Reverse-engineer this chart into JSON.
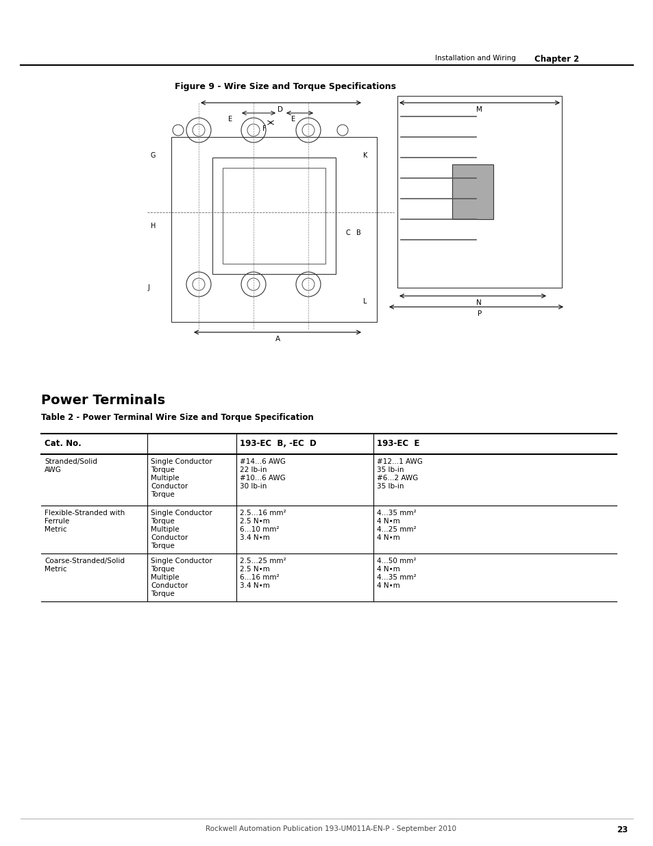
{
  "page_title_right": "Installation and Wiring",
  "chapter_label": "Chapter 2",
  "figure_title": "Figure 9 - Wire Size and Torque Specifications",
  "section_title": "Power Terminals",
  "table_title": "Table 2 - Power Terminal Wire Size and Torque Specification",
  "table_headers": [
    "Cat. No.",
    "193-EC  B, -EC  D",
    "193-EC  E"
  ],
  "table_col0": [
    "Stranded/Solid\nAWG",
    "Flexible-Stranded with\nFerrule\nMetric",
    "Coarse-Stranded/Solid\nMetric"
  ],
  "table_col1": [
    "Single Conductor\nTorque\nMultiple\nConductor\nTorque",
    "Single Conductor\nTorque\nMultiple\nConductor\nTorque",
    "Single Conductor\nTorque\nMultiple\nConductor\nTorque"
  ],
  "table_col2_row0": "#14...6 AWG\n22 lb-in\n#10...6 AWG\n30 lb-in",
  "table_col2_row1": "2.5...16 mm²\n2.5 N•m\n6...10 mm²\n3.4 N•m",
  "table_col2_row2": "2.5...25 mm²\n2.5 N•m\n6...16 mm²\n3.4 N•m",
  "table_col3_row0": "#12...1 AWG\n35 lb-in\n#6...2 AWG\n35 lb-in",
  "table_col3_row1": "4...35 mm²\n4 N•m\n4...25 mm²\n4 N•m",
  "table_col3_row2": "4...50 mm²\n4 N•m\n4...35 mm²\n4 N•m",
  "footer_text": "Rockwell Automation Publication 193-UM011A-EN-P - September 2010",
  "page_number": "23",
  "bg_color": "#ffffff",
  "text_color": "#000000",
  "line_color": "#000000"
}
